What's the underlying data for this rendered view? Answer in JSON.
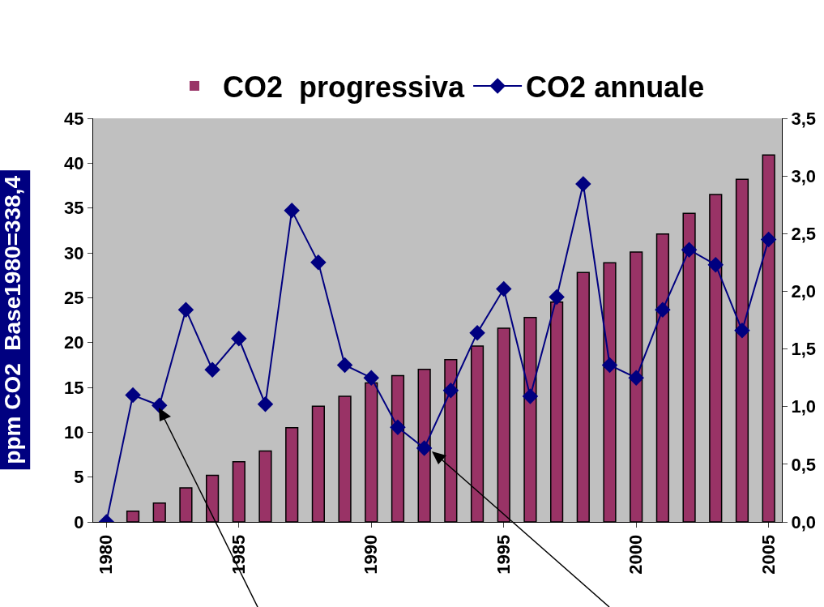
{
  "chart_data": {
    "type": "bar",
    "ylabel": "ppm CO2  Base1980=338,4",
    "categories": [
      "1980",
      null,
      null,
      null,
      null,
      "1985",
      null,
      null,
      null,
      null,
      "1990",
      null,
      null,
      null,
      null,
      "1995",
      null,
      null,
      null,
      null,
      "2000",
      null,
      null,
      null,
      null,
      "2005"
    ],
    "series": [
      {
        "name": "CO2  progressiva",
        "color": "#993366",
        "values": [
          0,
          1.2,
          2.1,
          3.8,
          5.2,
          6.7,
          7.9,
          10.5,
          12.9,
          14.0,
          15.5,
          16.3,
          17.0,
          18.1,
          19.6,
          21.6,
          22.8,
          24.5,
          27.8,
          28.9,
          30.1,
          32.1,
          34.4,
          36.5,
          38.2,
          40.9
        ]
      },
      {
        "name": "CO2 annuale",
        "type": "line",
        "axis": "y2",
        "color": "#000080",
        "values": [
          0,
          1.1,
          1.01,
          1.84,
          1.32,
          1.59,
          1.02,
          2.7,
          2.25,
          1.36,
          1.25,
          0.82,
          0.64,
          1.14,
          1.64,
          2.02,
          1.09,
          1.95,
          2.93,
          1.36,
          1.25,
          1.84,
          2.36,
          2.23,
          1.66,
          2.45
        ]
      }
    ],
    "ylim": [
      0,
      45
    ],
    "yticks": [
      0,
      5,
      10,
      15,
      20,
      25,
      30,
      35,
      40,
      45
    ],
    "y2lim": [
      0,
      3.5
    ],
    "y2ticks": [
      {
        "value": 0,
        "label": "0,0"
      },
      {
        "value": 0.5,
        "label": "0,5"
      },
      {
        "value": 1,
        "label": "1,0"
      },
      {
        "value": 1.5,
        "label": "1,5"
      },
      {
        "value": 2,
        "label": "2,0"
      },
      {
        "value": 2.5,
        "label": "2,5"
      },
      {
        "value": 3,
        "label": "3,0"
      },
      {
        "value": 3.5,
        "label": "3,5"
      }
    ],
    "grid": false,
    "legend": "top",
    "marker": "diamond"
  }
}
